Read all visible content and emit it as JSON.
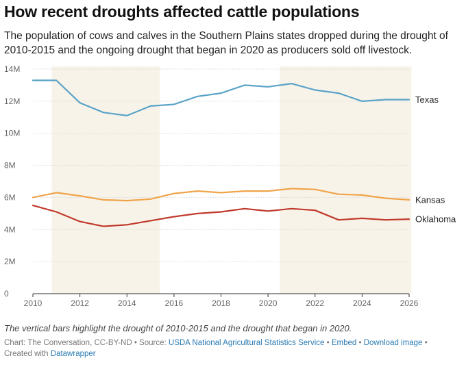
{
  "header": {
    "title": "How recent droughts affected cattle populations",
    "subtitle": "The population of cows and calves in the Southern Plains states dropped during the drought of 2010-2015 and the ongoing drought that began in 2020 as producers sold off livestock."
  },
  "footer": {
    "note": "The vertical bars highlight the drought of 2010-2015 and the drought that began in 2020.",
    "chart_by": "Chart: The Conversation, CC-BY-ND",
    "sep1": " • Source: ",
    "source": "USDA National Agricultural Statistics Service",
    "sep2": " • ",
    "embed": "Embed",
    "sep3": "  • ",
    "download": "Download image",
    "sep4": " •",
    "created_with": "Created with ",
    "tool": "Datawrapper"
  },
  "chart_data": {
    "type": "line",
    "x_ticks": [
      2010,
      2012,
      2014,
      2016,
      2018,
      2020,
      2022,
      2024,
      2026
    ],
    "y_ticks": [
      0,
      2,
      4,
      6,
      8,
      10,
      12,
      14
    ],
    "y_tick_labels": [
      "0",
      "2M",
      "4M",
      "6M",
      "8M",
      "10M",
      "12M",
      "14M"
    ],
    "xlim": [
      2010,
      2026
    ],
    "ylim": [
      0,
      14
    ],
    "grid": true,
    "highlight_ranges": [
      [
        2010.8,
        2015.4
      ],
      [
        2020.5,
        2026.1
      ]
    ],
    "highlight_color": "#f8f3e9",
    "series": [
      {
        "name": "Texas",
        "color": "#5aa3c8",
        "x": [
          2010,
          2011,
          2012,
          2013,
          2014,
          2015,
          2016,
          2017,
          2018,
          2019,
          2020,
          2021,
          2022,
          2023,
          2024,
          2025,
          2026
        ],
        "values": [
          13.3,
          13.3,
          11.9,
          11.3,
          11.1,
          11.7,
          11.8,
          12.3,
          12.5,
          13.0,
          12.9,
          13.1,
          12.7,
          12.5,
          12.0,
          12.1,
          12.1
        ]
      },
      {
        "name": "Kansas",
        "color": "#f0a44a",
        "x": [
          2010,
          2011,
          2012,
          2013,
          2014,
          2015,
          2016,
          2017,
          2018,
          2019,
          2020,
          2021,
          2022,
          2023,
          2024,
          2025,
          2026
        ],
        "values": [
          6.0,
          6.3,
          6.1,
          5.85,
          5.8,
          5.9,
          6.25,
          6.4,
          6.3,
          6.4,
          6.4,
          6.55,
          6.5,
          6.2,
          6.15,
          5.95,
          5.85
        ]
      },
      {
        "name": "Oklahoma",
        "color": "#c0392b",
        "x": [
          2010,
          2011,
          2012,
          2013,
          2014,
          2015,
          2016,
          2017,
          2018,
          2019,
          2020,
          2021,
          2022,
          2023,
          2024,
          2025,
          2026
        ],
        "values": [
          5.5,
          5.1,
          4.5,
          4.2,
          4.3,
          4.55,
          4.8,
          5.0,
          5.1,
          5.3,
          5.15,
          5.3,
          5.2,
          4.6,
          4.7,
          4.6,
          4.65
        ]
      }
    ]
  }
}
